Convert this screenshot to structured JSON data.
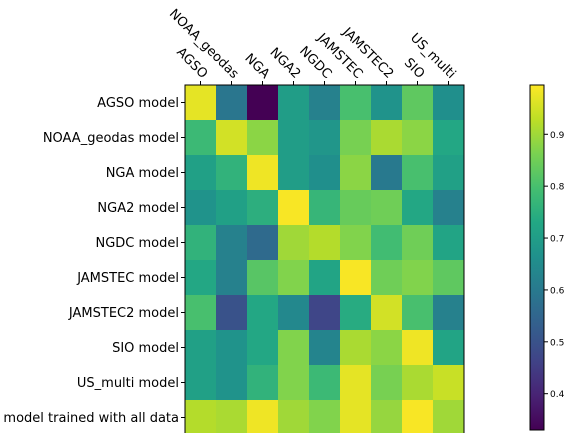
{
  "chart_data": {
    "type": "heatmap",
    "title": "",
    "xlabel": "",
    "ylabel": "",
    "colormap": "viridis",
    "x_categories": [
      "AGSO",
      "NOAA_geodas",
      "NGA",
      "NGA2",
      "NGDC",
      "JAMSTEC",
      "JAMSTEC2",
      "SIO",
      "US_multi"
    ],
    "y_categories": [
      "AGSO model",
      "NOAA_geodas model",
      "NGA model",
      "NGA2 model",
      "NGDC model",
      "JAMSTEC model",
      "JAMSTEC2 model",
      "SIO model",
      "US_multi model",
      "model trained with all data"
    ],
    "values": [
      [
        0.97,
        0.59,
        0.33,
        0.7,
        0.62,
        0.8,
        0.67,
        0.83,
        0.66
      ],
      [
        0.78,
        0.95,
        0.88,
        0.7,
        0.68,
        0.86,
        0.91,
        0.88,
        0.73
      ],
      [
        0.71,
        0.76,
        0.98,
        0.7,
        0.66,
        0.88,
        0.6,
        0.8,
        0.71
      ],
      [
        0.67,
        0.71,
        0.75,
        0.99,
        0.77,
        0.84,
        0.85,
        0.73,
        0.62
      ],
      [
        0.76,
        0.62,
        0.56,
        0.9,
        0.92,
        0.87,
        0.79,
        0.85,
        0.72
      ],
      [
        0.73,
        0.62,
        0.82,
        0.87,
        0.72,
        0.99,
        0.85,
        0.87,
        0.83
      ],
      [
        0.8,
        0.5,
        0.73,
        0.64,
        0.47,
        0.74,
        0.95,
        0.8,
        0.62
      ],
      [
        0.71,
        0.67,
        0.73,
        0.87,
        0.63,
        0.91,
        0.88,
        0.98,
        0.72
      ],
      [
        0.71,
        0.67,
        0.76,
        0.87,
        0.78,
        0.97,
        0.86,
        0.91,
        0.94
      ],
      [
        0.92,
        0.91,
        0.98,
        0.9,
        0.87,
        0.97,
        0.89,
        0.99,
        0.9
      ]
    ],
    "colorbar": {
      "min": 0.33,
      "max": 0.995,
      "ticks": [
        0.4,
        0.5,
        0.6,
        0.7,
        0.8,
        0.9
      ]
    },
    "grid": false
  }
}
